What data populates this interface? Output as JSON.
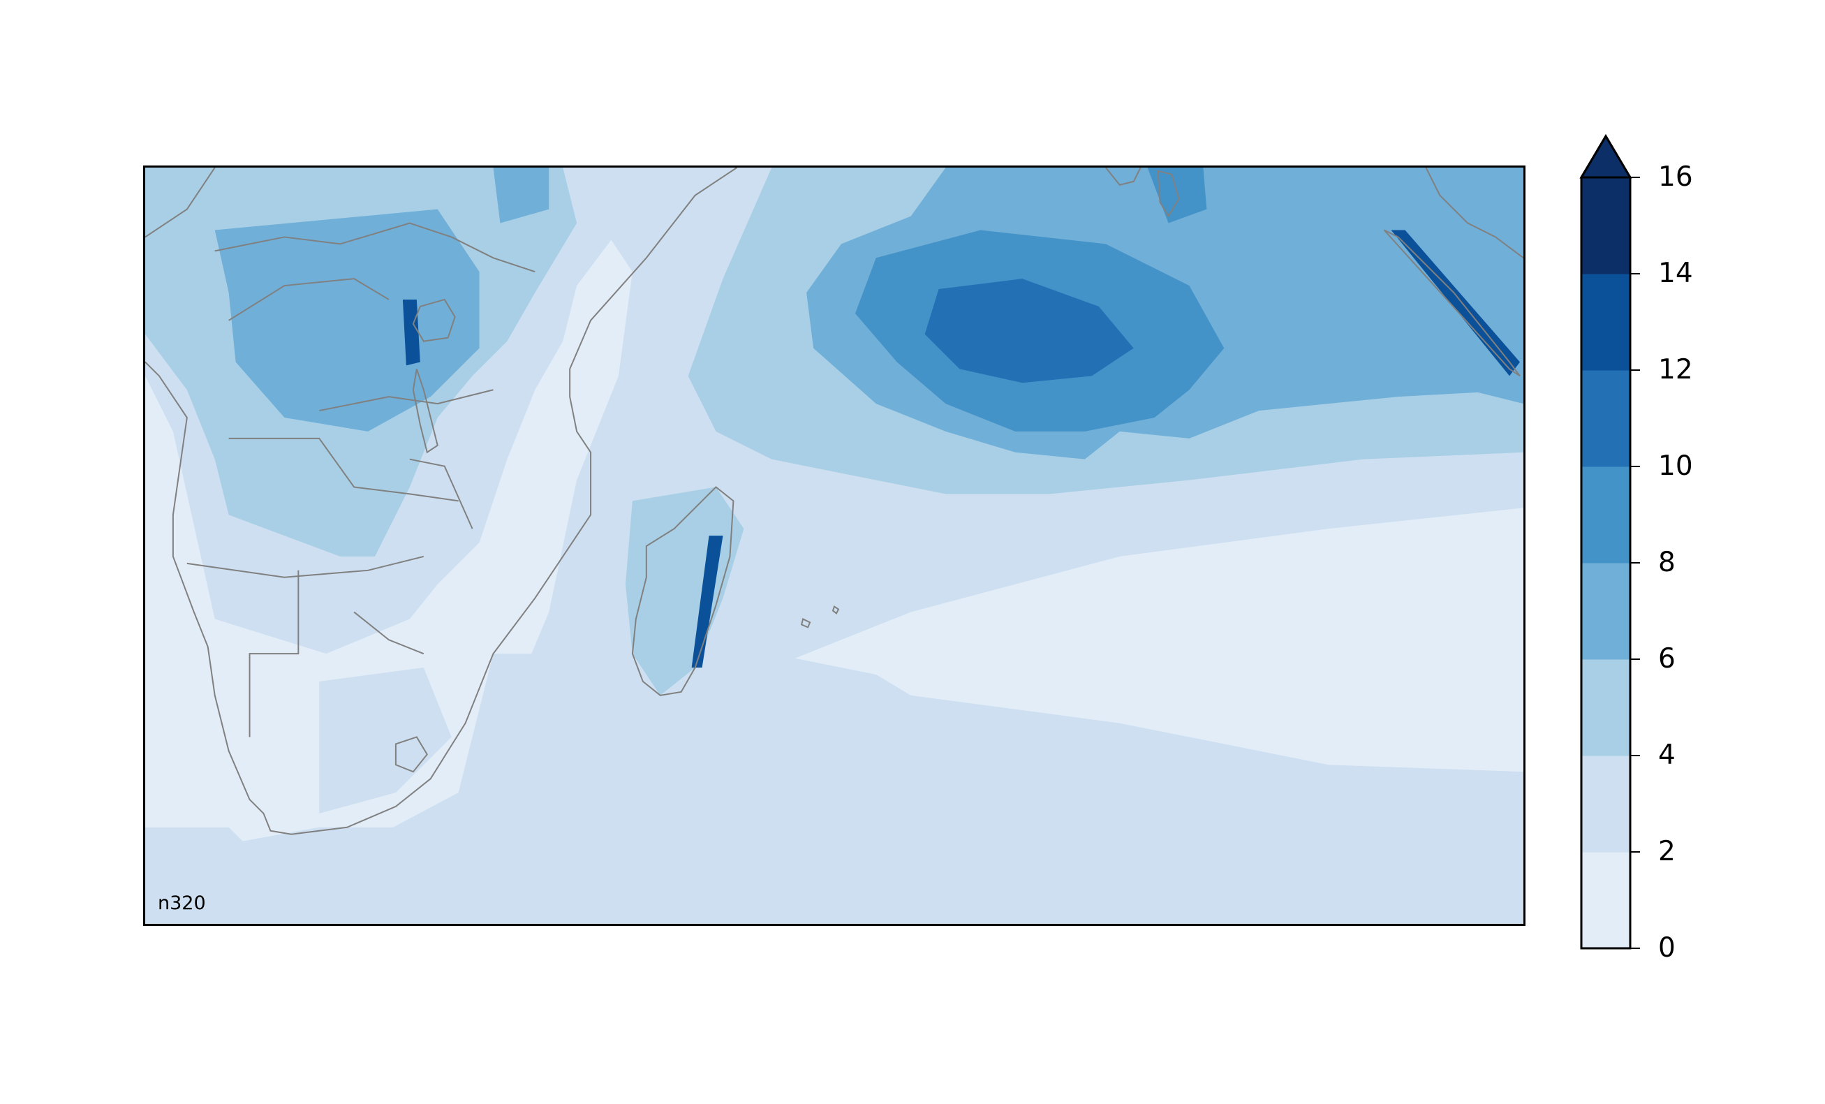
{
  "map": {
    "grid_label": "n320",
    "colormap": [
      "#e3edf8",
      "#cddff0",
      "#a8cfe5",
      "#70afd8",
      "#4493c8",
      "#2470b5",
      "#0a519a",
      "#0c2f67"
    ],
    "coastline_color": "#808080"
  },
  "colorbar": {
    "ticks": [
      "0",
      "2",
      "4",
      "6",
      "8",
      "10",
      "12",
      "14",
      "16"
    ],
    "extend": "max"
  }
}
